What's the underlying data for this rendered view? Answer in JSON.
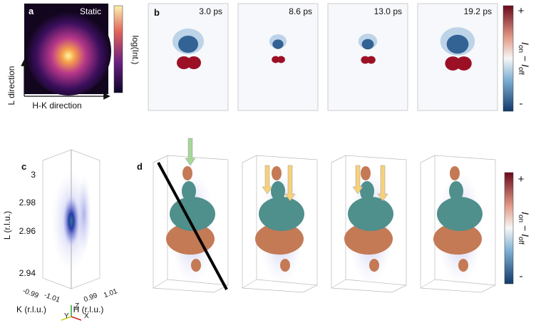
{
  "panel_a": {
    "letter": "a",
    "tag": "Static",
    "colorbar_label": "log(Int.)",
    "y_axis": "L direction",
    "x_axis": "H-K direction"
  },
  "panel_b": {
    "letter": "b",
    "times": [
      "3.0 ps",
      "8.6 ps",
      "13.0 ps",
      "19.2 ps"
    ],
    "colorbar": {
      "plus": "+",
      "minus": "-",
      "label": {
        "i1": "I",
        "sub1": "on",
        "op": " − ",
        "i2": "I",
        "sub2": "off"
      }
    }
  },
  "panel_c": {
    "letter": "c",
    "l_ticks": [
      "3",
      "2.98",
      "2.96",
      "2.94"
    ],
    "l_label": "L (r.l.u.)",
    "k_ticks": [
      "-0.99",
      "-1.01"
    ],
    "h_ticks": [
      "0.99",
      "1.01"
    ],
    "k_label": "K (r.l.u.)",
    "h_label": "H (r.l.u.)",
    "axes": [
      "Z",
      "Y",
      "X"
    ]
  },
  "panel_d": {
    "letter": "d",
    "colorbar": {
      "plus": "+",
      "minus": "-",
      "label": {
        "i1": "I",
        "sub1": "on",
        "op": " − ",
        "i2": "I",
        "sub2": "off"
      }
    }
  }
}
